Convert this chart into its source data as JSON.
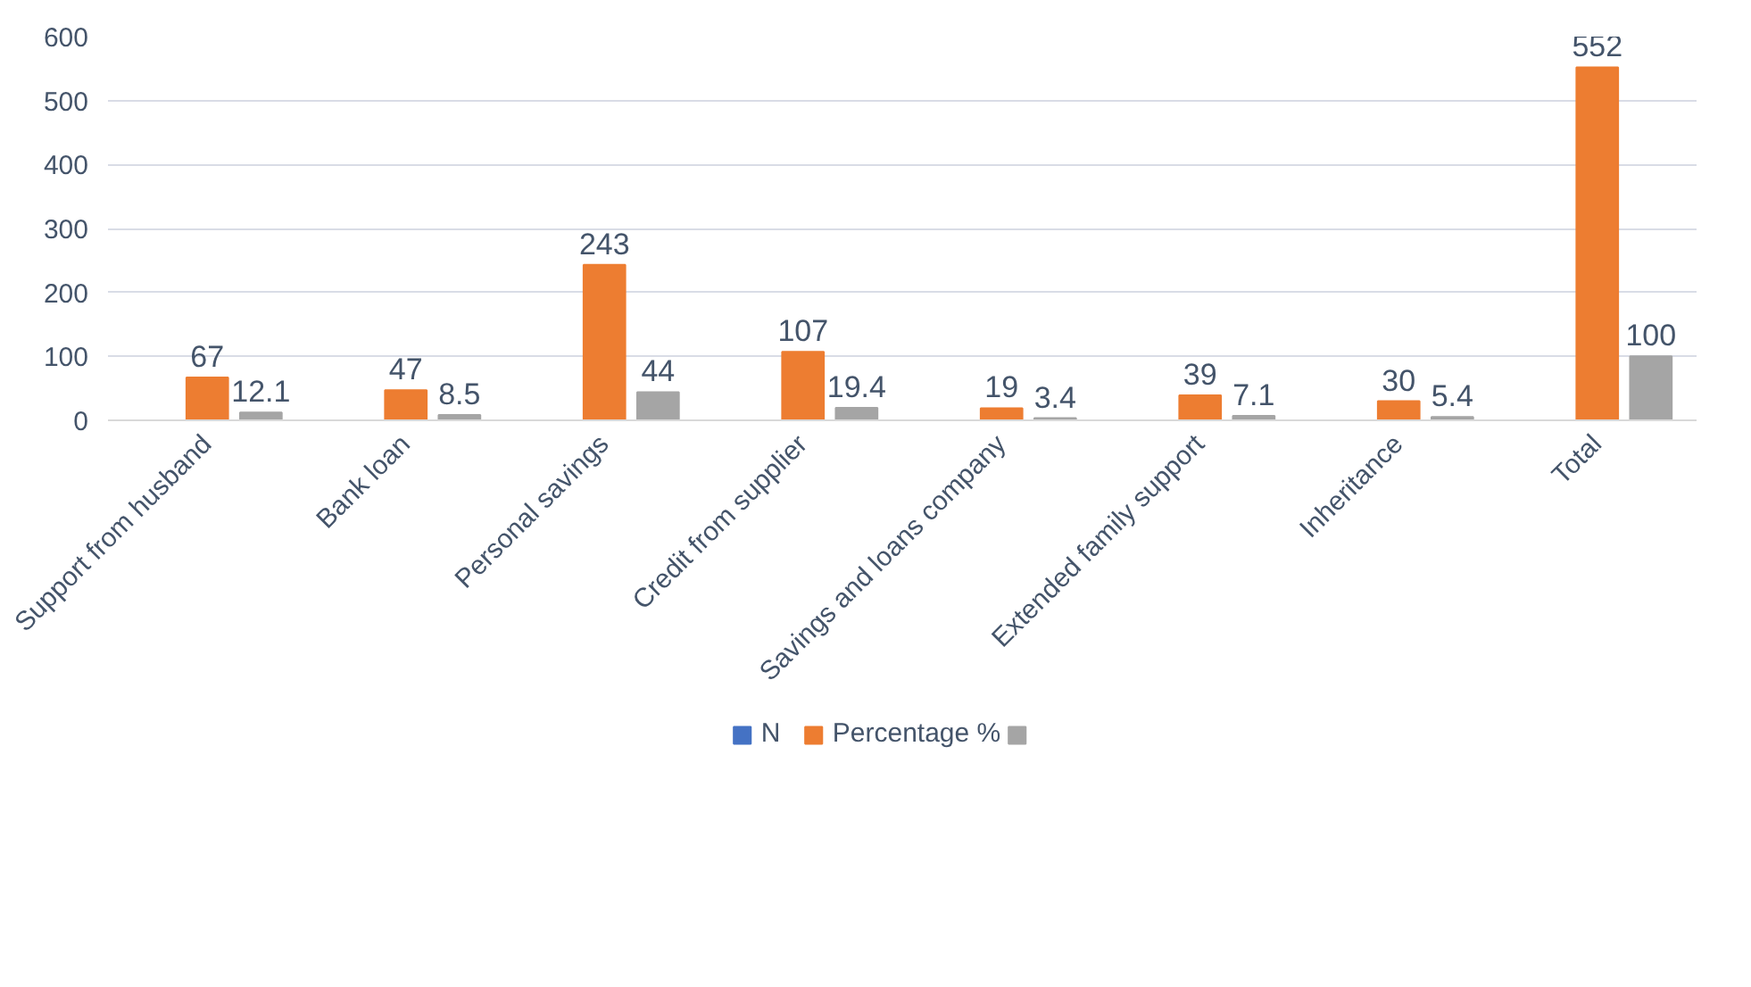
{
  "chart_data": {
    "type": "bar",
    "categories": [
      "Support from husband",
      "Bank loan",
      "Personal savings",
      "Credit from supplier",
      "Savings and loans company",
      "Extended family support",
      "Inheritance",
      "Total"
    ],
    "series": [
      {
        "name": "N",
        "color": "#4472c4",
        "values": [
          null,
          null,
          null,
          null,
          null,
          null,
          null,
          null
        ]
      },
      {
        "name": "Percentage %",
        "color": "#ed7d31",
        "values": [
          67,
          47,
          243,
          107,
          19,
          39,
          30,
          552
        ]
      },
      {
        "color": "#a5a5a5",
        "values": [
          12.1,
          8.5,
          44,
          19.4,
          3.4,
          7.1,
          5.4,
          100
        ]
      }
    ],
    "ylim": [
      0,
      600
    ],
    "yticks": [
      0,
      100,
      200,
      300,
      400,
      500,
      600
    ],
    "grid": "y",
    "legend": "bottom",
    "data_labels": true
  }
}
